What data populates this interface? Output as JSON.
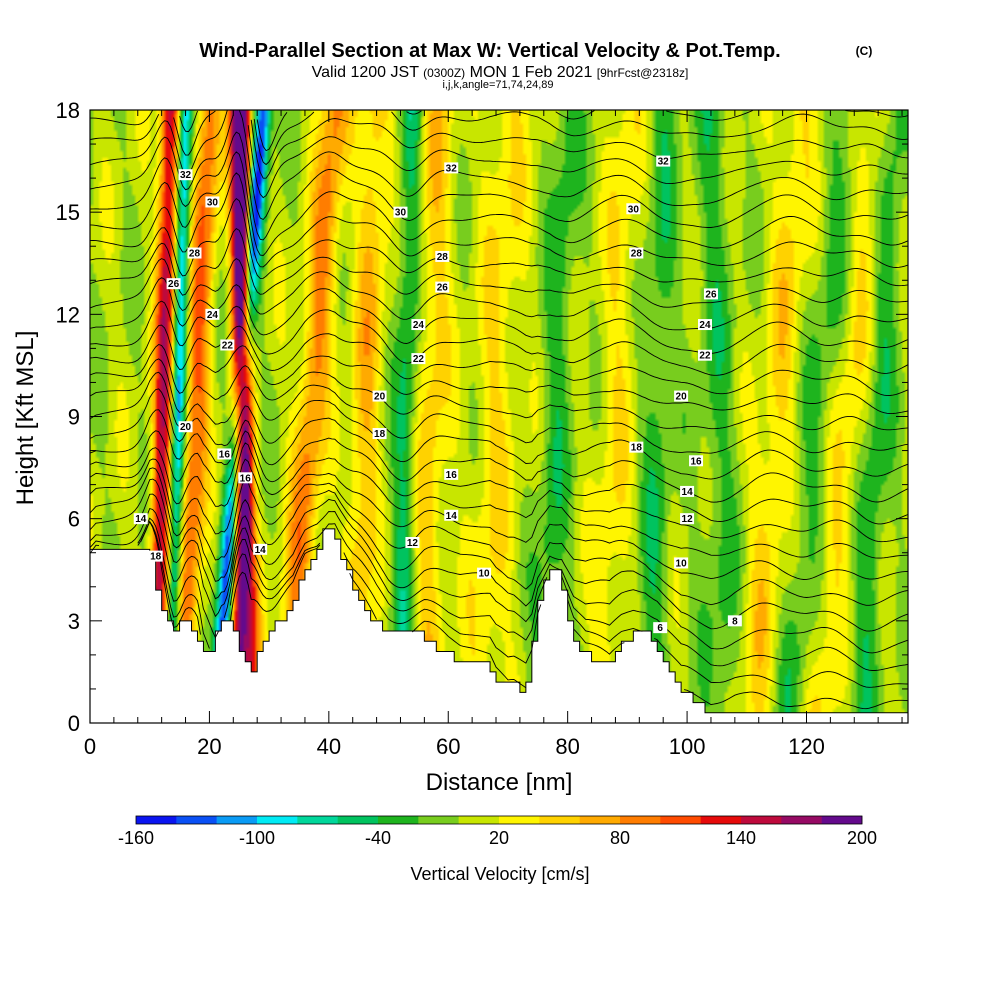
{
  "header": {
    "title": "Wind-Parallel Section at Max W: Vertical Velocity & Pot.Temp.",
    "copyright": "(C)",
    "sub_valid": "Valid 1200 JST",
    "sub_utc": "(0300Z)",
    "sub_date": "MON 1 Feb 2021",
    "sub_fcst": "[9hrFcst@2318z]",
    "sub_ijk": "i,j,k,angle=71,74,24,89"
  },
  "chart_data": {
    "type": "heatmap",
    "xlabel": "Distance [nm]",
    "ylabel": "Height [Kft MSL]",
    "xlim": [
      0,
      137
    ],
    "ylim": [
      0,
      18
    ],
    "xticks": [
      0,
      20,
      40,
      60,
      80,
      100,
      120
    ],
    "yticks": [
      0,
      3,
      6,
      9,
      12,
      15,
      18
    ],
    "colorbar": {
      "label": "Vertical Velocity [cm/s]",
      "tick_labels": [
        "-160",
        "-100",
        "-40",
        "20",
        "80",
        "140",
        "200"
      ],
      "tick_values": [
        -160,
        -100,
        -40,
        20,
        80,
        140,
        200
      ],
      "range": [
        -160,
        200
      ],
      "colors": [
        "#0a14f0",
        "#0a50f5",
        "#0a9bf5",
        "#00ebf5",
        "#00d79b",
        "#00c35f",
        "#1eb41e",
        "#78cd1e",
        "#c8e600",
        "#fff500",
        "#ffd200",
        "#ffaa00",
        "#ff7d00",
        "#ff4b00",
        "#e60a0a",
        "#be0a3c",
        "#960a64",
        "#640a8c"
      ]
    },
    "terrain_height_kft": {
      "x": [
        0,
        1,
        8,
        10,
        12,
        14,
        16,
        18,
        19,
        21,
        22,
        24,
        26,
        27,
        28,
        30,
        32,
        34,
        36,
        38,
        40,
        41,
        43,
        44,
        46,
        48,
        50,
        52,
        56,
        60,
        62,
        64,
        67,
        68,
        70,
        71,
        73,
        74,
        75,
        77,
        79,
        81,
        83,
        85,
        87,
        89,
        91,
        93,
        95,
        97,
        99,
        100,
        102,
        104,
        106,
        108,
        110,
        112,
        114,
        116,
        118,
        120,
        122,
        124,
        126,
        128,
        130,
        132,
        134,
        137
      ],
      "y": [
        4.8,
        5.2,
        5.2,
        5.2,
        3.5,
        2.7,
        2.9,
        2.7,
        2.0,
        2.2,
        3.0,
        2.9,
        2.0,
        1.3,
        1.8,
        2.5,
        3.0,
        3.4,
        4.5,
        5.0,
        5.8,
        5.8,
        4.6,
        4.1,
        3.5,
        3.0,
        2.7,
        2.7,
        2.6,
        2.0,
        1.8,
        1.8,
        1.7,
        1.3,
        1.0,
        1.1,
        1.0,
        1.6,
        3.1,
        4.6,
        4.3,
        2.7,
        2.0,
        1.8,
        1.6,
        2.2,
        2.6,
        2.7,
        2.4,
        1.7,
        1.0,
        0.9,
        0.6,
        0.3,
        0.3,
        0.35,
        0.3,
        0.3,
        0.3,
        0.3,
        0.35,
        0.3,
        0.3,
        0.3,
        0.3,
        0.35,
        0.3,
        0.3,
        0.3,
        0.3
      ]
    },
    "vertical_velocity_cm_s": {
      "background": 5,
      "features": [
        {
          "x_bottom": 11,
          "x_top": 13.5,
          "amplitude": 150,
          "width": 1.6
        },
        {
          "x_bottom": 15.5,
          "x_top": 20,
          "amplitude": 95,
          "width": 2.0
        },
        {
          "x_bottom": 13.5,
          "x_top": 16,
          "amplitude": -110,
          "width": 1.2
        },
        {
          "x_bottom": 21,
          "x_top": 29,
          "amplitude": -150,
          "width": 1.4
        },
        {
          "x_bottom": 25,
          "x_top": 25.5,
          "amplitude": 175,
          "width": 1.5
        },
        {
          "x_bottom": 27.5,
          "x_top": 24.5,
          "amplitude": 100,
          "width": 1.4
        },
        {
          "x_bottom": 33,
          "x_top": 41,
          "amplitude": 80,
          "width": 2.5
        },
        {
          "x_bottom": 44,
          "x_top": 48,
          "amplitude": 55,
          "width": 2.5
        },
        {
          "x_bottom": 52,
          "x_top": 54,
          "amplitude": -55,
          "width": 2.0
        },
        {
          "x_bottom": 56,
          "x_top": 58,
          "amplitude": 45,
          "width": 3.0
        },
        {
          "x_bottom": 66,
          "x_top": 70,
          "amplitude": 35,
          "width": 3.5
        },
        {
          "x_bottom": 76,
          "x_top": 80,
          "amplitude": -35,
          "width": 2.5
        },
        {
          "x_bottom": 86,
          "x_top": 90,
          "amplitude": 30,
          "width": 3.0
        },
        {
          "x_bottom": 94,
          "x_top": 96,
          "amplitude": -35,
          "width": 2.5
        },
        {
          "x_bottom": 106,
          "x_top": 104,
          "amplitude": -30,
          "width": 3.0
        },
        {
          "x_bottom": 111,
          "x_top": 119,
          "amplitude": 40,
          "width": 3.0
        },
        {
          "x_bottom": 117,
          "x_top": 127,
          "amplitude": -30,
          "width": 3.0
        },
        {
          "x_bottom": 122,
          "x_top": 132,
          "amplitude": 35,
          "width": 3.0
        },
        {
          "x_bottom": 129,
          "x_top": 135,
          "amplitude": -40,
          "width": 2.5
        }
      ]
    },
    "theta_contours": {
      "levels": [
        6,
        7,
        8,
        9,
        10,
        11,
        12,
        13,
        14,
        15,
        16,
        17,
        18,
        19,
        20,
        21,
        22,
        23,
        24,
        25,
        26,
        27,
        28,
        29,
        30,
        31,
        32,
        33,
        34
      ],
      "labels": [
        {
          "text": "32",
          "x": 16,
          "y": 16.1
        },
        {
          "text": "30",
          "x": 20.5,
          "y": 15.3
        },
        {
          "text": "28",
          "x": 17.5,
          "y": 13.8
        },
        {
          "text": "26",
          "x": 14,
          "y": 12.9
        },
        {
          "text": "24",
          "x": 20.5,
          "y": 12.0
        },
        {
          "text": "22",
          "x": 23,
          "y": 11.1
        },
        {
          "text": "20",
          "x": 16,
          "y": 8.7
        },
        {
          "text": "16",
          "x": 22.5,
          "y": 7.9
        },
        {
          "text": "16",
          "x": 26,
          "y": 7.2
        },
        {
          "text": "14",
          "x": 8.5,
          "y": 6.0
        },
        {
          "text": "14",
          "x": 28.5,
          "y": 5.1
        },
        {
          "text": "18",
          "x": 11,
          "y": 4.9
        },
        {
          "text": "32",
          "x": 60.5,
          "y": 16.3
        },
        {
          "text": "30",
          "x": 52,
          "y": 15.0
        },
        {
          "text": "28",
          "x": 59,
          "y": 13.7
        },
        {
          "text": "26",
          "x": 59,
          "y": 12.8
        },
        {
          "text": "24",
          "x": 55,
          "y": 11.7
        },
        {
          "text": "22",
          "x": 55,
          "y": 10.7
        },
        {
          "text": "20",
          "x": 48.5,
          "y": 9.6
        },
        {
          "text": "18",
          "x": 48.5,
          "y": 8.5
        },
        {
          "text": "16",
          "x": 60.5,
          "y": 7.3
        },
        {
          "text": "14",
          "x": 60.5,
          "y": 6.1
        },
        {
          "text": "12",
          "x": 54,
          "y": 5.3
        },
        {
          "text": "10",
          "x": 66,
          "y": 4.4
        },
        {
          "text": "32",
          "x": 96,
          "y": 16.5
        },
        {
          "text": "30",
          "x": 91,
          "y": 15.1
        },
        {
          "text": "28",
          "x": 91.5,
          "y": 13.8
        },
        {
          "text": "26",
          "x": 104,
          "y": 12.6
        },
        {
          "text": "24",
          "x": 103,
          "y": 11.7
        },
        {
          "text": "22",
          "x": 103,
          "y": 10.8
        },
        {
          "text": "20",
          "x": 99,
          "y": 9.6
        },
        {
          "text": "18",
          "x": 91.5,
          "y": 8.1
        },
        {
          "text": "16",
          "x": 101.5,
          "y": 7.7
        },
        {
          "text": "14",
          "x": 100,
          "y": 6.8
        },
        {
          "text": "12",
          "x": 100,
          "y": 6.0
        },
        {
          "text": "10",
          "x": 99,
          "y": 4.7
        },
        {
          "text": "8",
          "x": 108,
          "y": 3.0
        },
        {
          "text": "6",
          "x": 95.5,
          "y": 2.8
        }
      ]
    }
  }
}
